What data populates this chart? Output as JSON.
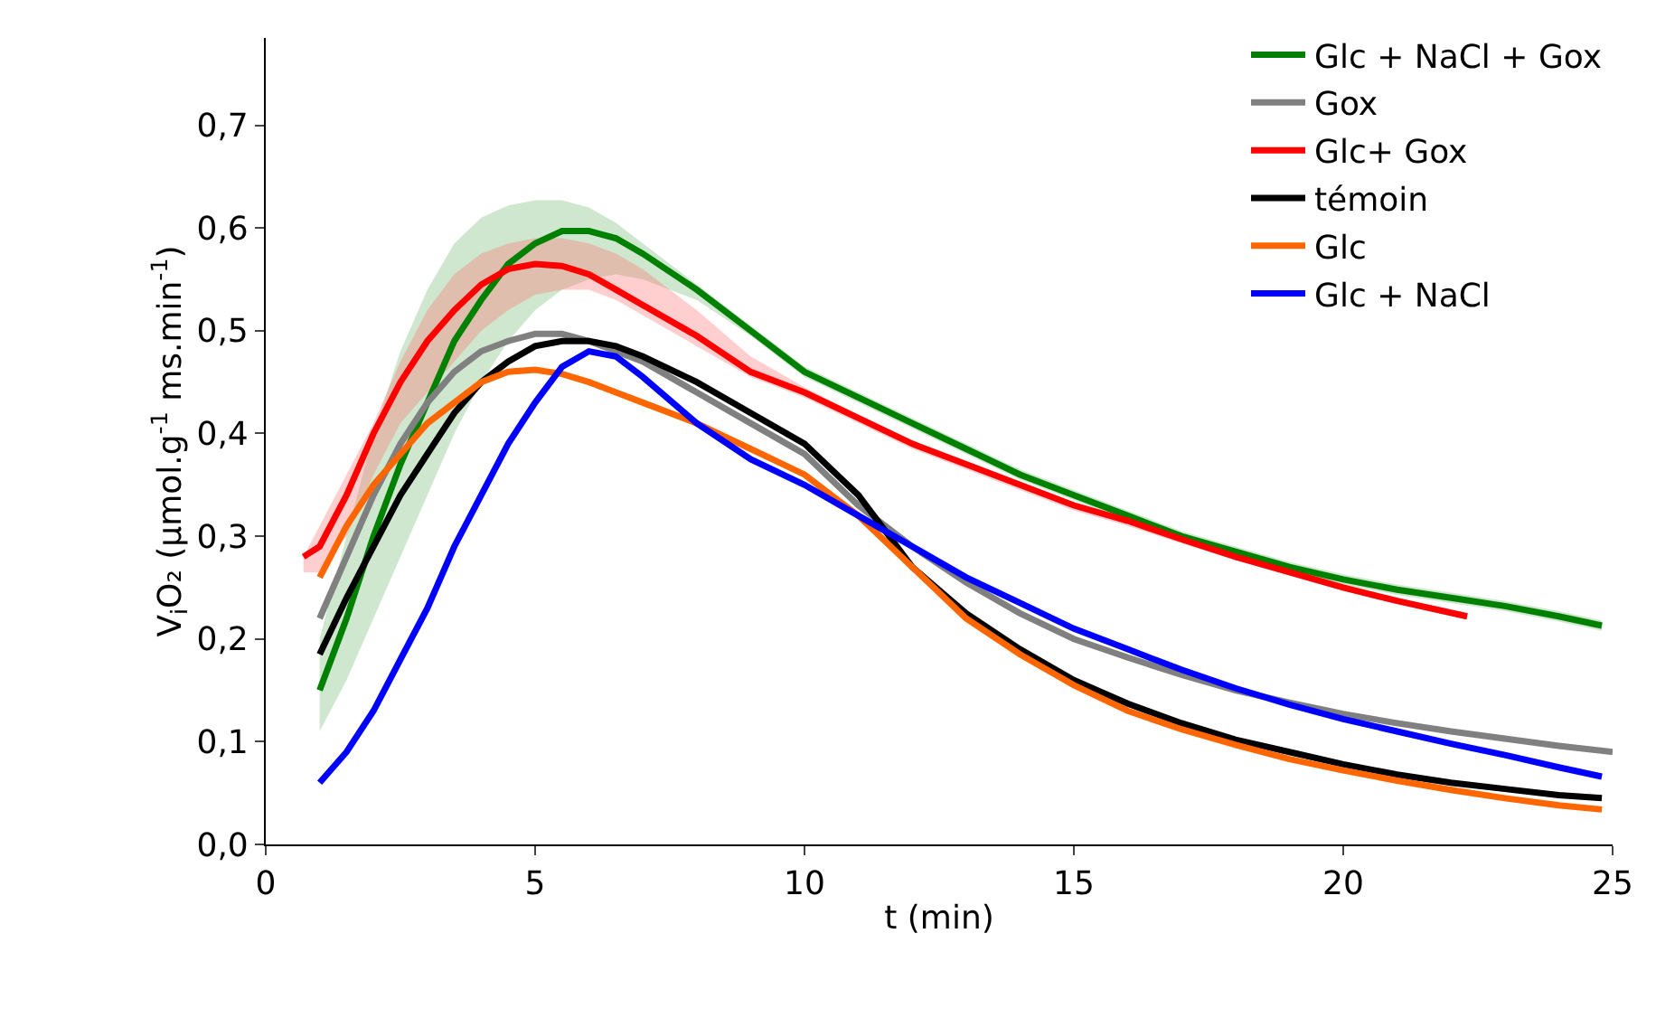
{
  "chart_data": {
    "type": "line",
    "xlabel": "t (min)",
    "ylabel": "V$_{i}$O₂ (µmol.g$^{-1}$ ms.min$^{-1}$)",
    "xlim": [
      0,
      25
    ],
    "xticks": [
      0,
      5,
      10,
      15,
      20,
      25
    ],
    "ylim": [
      0,
      0.785
    ],
    "yticks": [
      {
        "value": 0,
        "label": "0,0"
      },
      {
        "value": 0.1,
        "label": "0,1"
      },
      {
        "value": 0.2,
        "label": "0,2"
      },
      {
        "value": 0.3,
        "label": "0,3"
      },
      {
        "value": 0.4,
        "label": "0,4"
      },
      {
        "value": 0.5,
        "label": "0,5"
      },
      {
        "value": 0.6,
        "label": "0,6"
      },
      {
        "value": 0.7,
        "label": "0,7"
      }
    ],
    "grid": false,
    "legend": "top right",
    "marker": "none",
    "line_style": "solid",
    "series": [
      {
        "name": "Glc + NaCl + Gox",
        "color": "#008000",
        "x": [
          1,
          1.5,
          2,
          2.5,
          3,
          3.5,
          4,
          4.5,
          5,
          5.5,
          6,
          6.5,
          7,
          8,
          9,
          10,
          11,
          12,
          13,
          14,
          15,
          16,
          17,
          18,
          19,
          20,
          21,
          22,
          23,
          24,
          24.8
        ],
        "values": [
          0.15,
          0.22,
          0.3,
          0.37,
          0.43,
          0.49,
          0.53,
          0.565,
          0.585,
          0.597,
          0.597,
          0.59,
          0.575,
          0.54,
          0.5,
          0.46,
          0.435,
          0.41,
          0.385,
          0.36,
          0.34,
          0.32,
          0.3,
          0.285,
          0.27,
          0.258,
          0.248,
          0.24,
          0.232,
          0.222,
          0.213
        ],
        "upper": [
          0.2,
          0.3,
          0.4,
          0.48,
          0.54,
          0.585,
          0.61,
          0.622,
          0.627,
          0.627,
          0.62,
          0.605,
          0.585,
          0.545,
          0.505,
          0.465,
          0.44,
          0.415,
          0.39,
          0.365,
          0.345,
          0.325,
          0.305,
          0.29,
          0.275,
          0.263,
          0.253,
          0.245,
          0.237,
          0.227,
          0.218
        ],
        "lower": [
          0.11,
          0.16,
          0.22,
          0.28,
          0.34,
          0.4,
          0.45,
          0.49,
          0.52,
          0.54,
          0.55,
          0.555,
          0.55,
          0.53,
          0.495,
          0.455,
          0.43,
          0.405,
          0.38,
          0.355,
          0.335,
          0.315,
          0.295,
          0.28,
          0.265,
          0.253,
          0.243,
          0.235,
          0.227,
          0.217,
          0.208
        ]
      },
      {
        "name": "Gox",
        "color": "#808080",
        "x": [
          1,
          1.5,
          2,
          2.5,
          3,
          3.5,
          4,
          4.5,
          5,
          5.5,
          6,
          6.5,
          7,
          8,
          9,
          10,
          11,
          12,
          13,
          14,
          15,
          16,
          17,
          18,
          19,
          20,
          21,
          22,
          23,
          24,
          25
        ],
        "values": [
          0.22,
          0.28,
          0.34,
          0.39,
          0.43,
          0.46,
          0.48,
          0.49,
          0.497,
          0.497,
          0.49,
          0.48,
          0.47,
          0.44,
          0.41,
          0.38,
          0.33,
          0.29,
          0.255,
          0.225,
          0.2,
          0.182,
          0.165,
          0.15,
          0.138,
          0.127,
          0.118,
          0.11,
          0.103,
          0.096,
          0.09
        ]
      },
      {
        "name": "Glc+ Gox",
        "color": "#ff0000",
        "x": [
          0.7,
          1,
          1.5,
          2,
          2.5,
          3,
          3.5,
          4,
          4.5,
          5,
          5.5,
          6,
          6.5,
          7,
          8,
          9,
          10,
          11,
          12,
          13,
          14,
          15,
          16,
          17,
          18,
          19,
          20,
          21,
          22.3
        ],
        "values": [
          0.28,
          0.29,
          0.34,
          0.4,
          0.45,
          0.49,
          0.52,
          0.545,
          0.56,
          0.565,
          0.563,
          0.555,
          0.54,
          0.525,
          0.495,
          0.46,
          0.44,
          0.415,
          0.39,
          0.37,
          0.35,
          0.33,
          0.315,
          0.297,
          0.28,
          0.265,
          0.25,
          0.237,
          0.222
        ],
        "upper": [
          0.28,
          0.31,
          0.36,
          0.41,
          0.47,
          0.52,
          0.555,
          0.575,
          0.585,
          0.59,
          0.59,
          0.585,
          0.575,
          0.56,
          0.52,
          0.475,
          0.445,
          0.418,
          0.393,
          0.373,
          0.353,
          0.333,
          0.318,
          0.3,
          0.283,
          0.268,
          0.253,
          0.24,
          0.225
        ],
        "lower": [
          0.265,
          0.265,
          0.3,
          0.36,
          0.41,
          0.44,
          0.47,
          0.5,
          0.52,
          0.535,
          0.54,
          0.54,
          0.53,
          0.515,
          0.485,
          0.455,
          0.435,
          0.41,
          0.385,
          0.365,
          0.345,
          0.325,
          0.31,
          0.293,
          0.277,
          0.262,
          0.247,
          0.234,
          0.219
        ]
      },
      {
        "name": "témoin",
        "color": "#000000",
        "x": [
          1,
          1.5,
          2,
          2.5,
          3,
          3.5,
          4,
          4.5,
          5,
          5.5,
          6,
          6.5,
          7,
          8,
          9,
          10,
          11,
          12,
          13,
          14,
          15,
          16,
          17,
          18,
          19,
          20,
          21,
          22,
          23,
          24,
          24.8
        ],
        "values": [
          0.185,
          0.24,
          0.29,
          0.34,
          0.38,
          0.42,
          0.45,
          0.47,
          0.485,
          0.49,
          0.49,
          0.485,
          0.475,
          0.45,
          0.42,
          0.39,
          0.34,
          0.27,
          0.225,
          0.19,
          0.16,
          0.137,
          0.118,
          0.102,
          0.09,
          0.078,
          0.068,
          0.06,
          0.054,
          0.048,
          0.045
        ]
      },
      {
        "name": "Glc",
        "color": "#ff6600",
        "x": [
          1,
          1.5,
          2,
          2.5,
          3,
          3.5,
          4,
          4.5,
          5,
          5.5,
          6,
          6.5,
          7,
          8,
          9,
          10,
          11,
          12,
          13,
          14,
          15,
          16,
          17,
          18,
          19,
          20,
          21,
          22,
          23,
          24,
          24.8
        ],
        "values": [
          0.26,
          0.31,
          0.35,
          0.38,
          0.41,
          0.43,
          0.45,
          0.46,
          0.462,
          0.458,
          0.45,
          0.44,
          0.43,
          0.41,
          0.385,
          0.36,
          0.32,
          0.27,
          0.22,
          0.185,
          0.155,
          0.13,
          0.112,
          0.097,
          0.083,
          0.072,
          0.062,
          0.053,
          0.045,
          0.038,
          0.034
        ]
      },
      {
        "name": "Glc + NaCl",
        "color": "#0000ff",
        "x": [
          1,
          1.5,
          2,
          2.5,
          3,
          3.5,
          4,
          4.5,
          5,
          5.5,
          6,
          6.5,
          7,
          8,
          9,
          10,
          11,
          12,
          13,
          14,
          15,
          16,
          17,
          18,
          19,
          20,
          21,
          22,
          23,
          24,
          24.8
        ],
        "values": [
          0.06,
          0.09,
          0.13,
          0.18,
          0.23,
          0.29,
          0.34,
          0.39,
          0.43,
          0.465,
          0.48,
          0.475,
          0.455,
          0.41,
          0.375,
          0.35,
          0.32,
          0.29,
          0.26,
          0.235,
          0.21,
          0.19,
          0.17,
          0.152,
          0.136,
          0.122,
          0.11,
          0.098,
          0.087,
          0.075,
          0.066
        ]
      }
    ]
  }
}
